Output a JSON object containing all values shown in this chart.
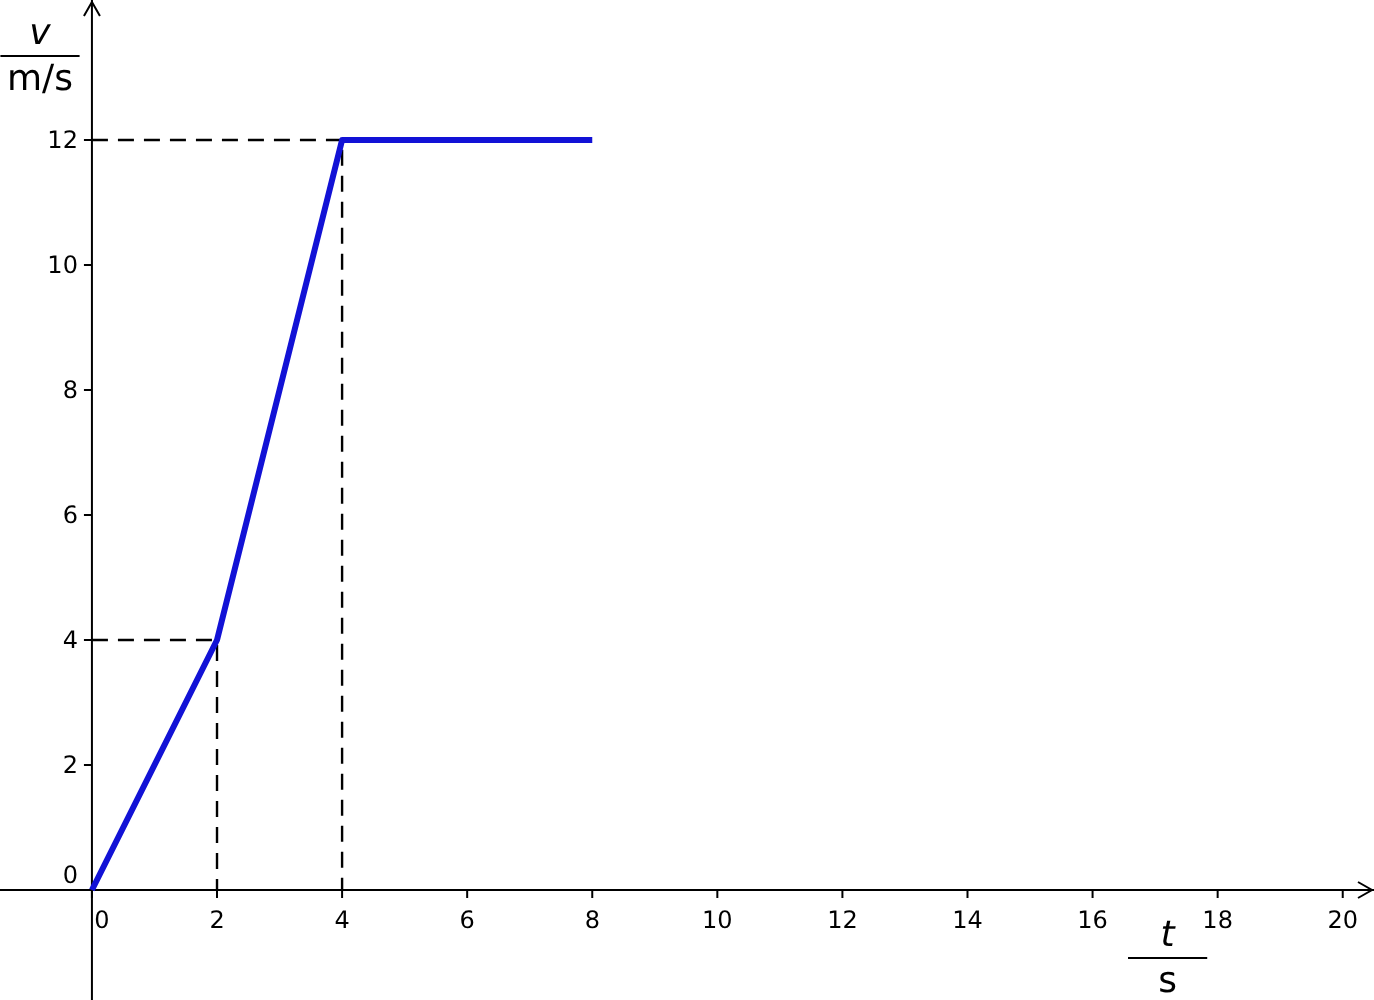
{
  "chart_data": {
    "type": "line",
    "xlabel": "t",
    "ylabel": "v",
    "annotations": [
      "m/s",
      "s"
    ],
    "xlim": [
      -1.47,
      20.5
    ],
    "ylim": [
      -1.76,
      14.24
    ],
    "xticks": [
      0,
      2,
      4,
      6,
      8,
      10,
      12,
      14,
      16,
      18,
      20
    ],
    "yticks": [
      0,
      2,
      4,
      6,
      8,
      10,
      12
    ],
    "grid": false,
    "marker": "none",
    "series": [
      {
        "color": "#1212d6",
        "x": [
          0,
          2,
          4,
          8
        ],
        "values": [
          0,
          4,
          12,
          12
        ],
        "line_style": "solid"
      },
      {
        "color": "#000000",
        "x": [
          0,
          2,
          2
        ],
        "values": [
          4,
          4,
          0
        ],
        "line_style": "dashed"
      },
      {
        "color": "#000000",
        "x": [
          0,
          4,
          4
        ],
        "values": [
          12,
          12,
          0
        ],
        "line_style": "dashed"
      }
    ]
  }
}
